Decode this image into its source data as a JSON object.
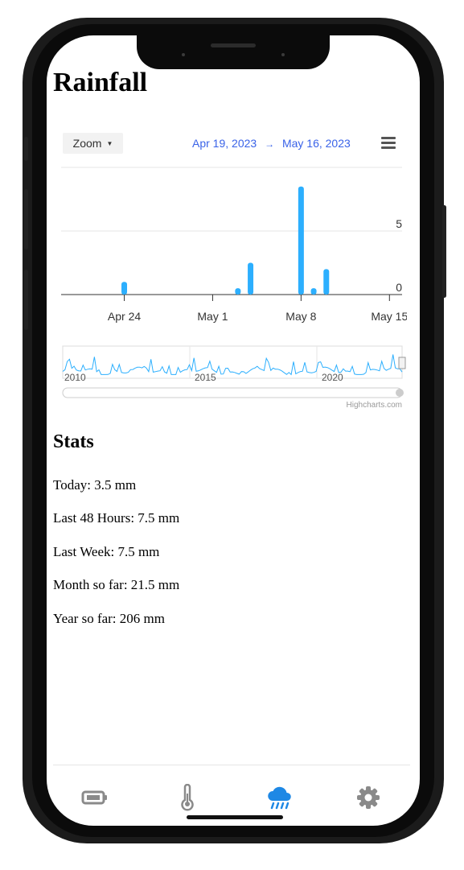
{
  "page": {
    "title": "Rainfall"
  },
  "chart_toolbar": {
    "zoom_label": "Zoom",
    "range_start": "Apr 19, 2023",
    "range_arrow": "→",
    "range_end": "May 16, 2023"
  },
  "chart_data": {
    "type": "bar",
    "x_unit": "date",
    "x": [
      "2023-04-24",
      "2023-05-03",
      "2023-05-04",
      "2023-05-08",
      "2023-05-09",
      "2023-05-10"
    ],
    "values": [
      1.0,
      0.5,
      2.5,
      8.5,
      0.5,
      2.0
    ],
    "x_tick_labels": [
      "Apr 24",
      "May 1",
      "May 8",
      "May 15"
    ],
    "y_tick_labels": [
      "0",
      "5"
    ],
    "ylim": [
      0,
      10
    ],
    "xlim": [
      "2023-04-19",
      "2023-05-16"
    ],
    "bar_color": "#2caffe",
    "grid": true,
    "navigator": {
      "labels": [
        "2010",
        "2015",
        "2020"
      ],
      "series_color": "#2caffe"
    },
    "credits": "Highcharts.com"
  },
  "stats": {
    "title": "Stats",
    "today": "Today: 3.5 mm",
    "last48": "Last 48 Hours: 7.5 mm",
    "last_week": "Last Week: 7.5 mm",
    "month": "Month so far: 21.5 mm",
    "year": "Year so far: 206 mm"
  },
  "tabbar": {
    "active_color": "#1e88e5",
    "inactive_color": "#8a8a8a",
    "tabs": [
      {
        "icon": "battery-icon"
      },
      {
        "icon": "thermometer-icon"
      },
      {
        "icon": "rain-cloud-icon"
      },
      {
        "icon": "gear-icon"
      }
    ]
  }
}
